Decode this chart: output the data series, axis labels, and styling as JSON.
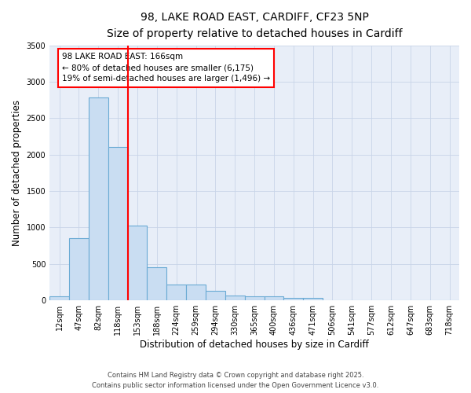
{
  "title_line1": "98, LAKE ROAD EAST, CARDIFF, CF23 5NP",
  "title_line2": "Size of property relative to detached houses in Cardiff",
  "xlabel": "Distribution of detached houses by size in Cardiff",
  "ylabel": "Number of detached properties",
  "categories": [
    "12sqm",
    "47sqm",
    "82sqm",
    "118sqm",
    "153sqm",
    "188sqm",
    "224sqm",
    "259sqm",
    "294sqm",
    "330sqm",
    "365sqm",
    "400sqm",
    "436sqm",
    "471sqm",
    "506sqm",
    "541sqm",
    "577sqm",
    "612sqm",
    "647sqm",
    "683sqm",
    "718sqm"
  ],
  "values": [
    55,
    850,
    2780,
    2100,
    1030,
    455,
    215,
    215,
    130,
    65,
    55,
    50,
    30,
    30,
    5,
    5,
    5,
    5,
    5,
    5,
    5
  ],
  "bar_color": "#c9ddf2",
  "bar_edge_color": "#6aaad4",
  "bar_linewidth": 0.8,
  "vline_index": 4,
  "vline_color": "red",
  "annotation_title": "98 LAKE ROAD EAST: 166sqm",
  "annotation_line2": "← 80% of detached houses are smaller (6,175)",
  "annotation_line3": "19% of semi-detached houses are larger (1,496) →",
  "ylim": [
    0,
    3500
  ],
  "yticks": [
    0,
    500,
    1000,
    1500,
    2000,
    2500,
    3000,
    3500
  ],
  "grid_color": "#c8d4e8",
  "background_color": "#e8eef8",
  "footer_line1": "Contains HM Land Registry data © Crown copyright and database right 2025.",
  "footer_line2": "Contains public sector information licensed under the Open Government Licence v3.0.",
  "title_fontsize": 10,
  "subtitle_fontsize": 9,
  "axis_label_fontsize": 8.5,
  "tick_fontsize": 7,
  "annotation_fontsize": 7.5,
  "footer_fontsize": 6
}
